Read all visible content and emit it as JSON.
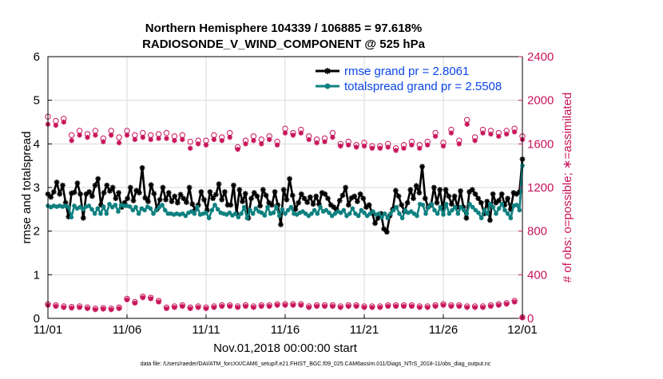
{
  "colors": {
    "rmse": "#000000",
    "spread": "#0f8080",
    "obs": "#c8145a",
    "legend_text": "#0a46e6",
    "grid": "#d9d9d9"
  },
  "chart_data": {
    "type": "line",
    "title": "Northern Hemisphere 104339 / 106885 = 97.618%",
    "subtitle": "RADIOSONDE_V_WIND_COMPONENT @ 525 hPa",
    "xlabel": "Nov.01,2018 00:00:00 start",
    "ylabel": "rmse and totalspread",
    "ylabel_right": "# of obs: o=possible; ∗=assimilated",
    "footnote": "data file: /Users/raeder/DAI/ATM_forcXX/CAM6_setup/f.e21.FHIST_BGC.f09_025.CAM6assim.011/Diags_NTrS_2018-11/obs_diag_output.nc",
    "x_ticks": [
      "11/01",
      "11/06",
      "11/11",
      "11/16",
      "11/21",
      "11/26",
      "12/01"
    ],
    "x_tick_days": [
      0,
      5,
      10,
      15,
      20,
      25,
      30
    ],
    "xlim": [
      0,
      30
    ],
    "ylim": [
      0,
      6
    ],
    "y_ticks": [
      "0",
      "1",
      "2",
      "3",
      "4",
      "5",
      "6"
    ],
    "ylim_right": [
      0,
      2400
    ],
    "y_ticks_right": [
      "0",
      "400",
      "800",
      "1200",
      "1600",
      "2000",
      "2400"
    ],
    "grid": true,
    "legend_position": "top-right",
    "series": [
      {
        "name": "rmse grand pr = 2.8061",
        "color": "#000000",
        "marker": "star",
        "values": [
          2.85,
          2.78,
          2.9,
          3.12,
          2.85,
          3.05,
          2.65,
          2.33,
          2.87,
          2.89,
          3.1,
          2.85,
          2.3,
          2.85,
          2.9,
          2.8,
          3.05,
          3.2,
          2.6,
          2.88,
          3.05,
          2.92,
          3.0,
          2.75,
          2.88,
          2.55,
          2.65,
          2.75,
          3.0,
          2.7,
          2.93,
          2.88,
          3.45,
          2.76,
          2.68,
          3.06,
          2.86,
          2.5,
          2.72,
          3.0,
          2.72,
          2.88,
          2.68,
          2.8,
          2.65,
          2.84,
          2.75,
          2.66,
          3.0,
          2.62,
          2.5,
          2.6,
          2.9,
          2.72,
          2.48,
          2.9,
          2.75,
          2.84,
          3.08,
          2.72,
          2.9,
          2.6,
          2.6,
          3.05,
          2.4,
          2.95,
          2.68,
          2.86,
          2.3,
          2.75,
          2.88,
          2.8,
          2.58,
          2.95,
          2.82,
          2.65,
          2.6,
          2.9,
          2.6,
          2.15,
          2.95,
          2.72,
          3.2,
          2.82,
          2.5,
          2.65,
          2.85,
          2.75,
          2.66,
          2.78,
          2.62,
          2.8,
          2.62,
          2.88,
          2.85,
          2.75,
          2.6,
          2.55,
          2.48,
          2.7,
          2.82,
          3.0,
          2.6,
          2.76,
          2.8,
          2.68,
          2.85,
          2.75,
          2.55,
          2.6,
          2.42,
          2.18,
          2.3,
          2.4,
          2.05,
          1.98,
          2.35,
          2.5,
          2.93,
          2.8,
          2.6,
          2.45,
          2.65,
          2.95,
          2.75,
          3.04,
          2.88,
          3.48,
          2.75,
          2.55,
          2.6,
          3.0,
          2.65,
          2.95,
          2.5,
          2.95,
          2.8,
          2.62,
          2.8,
          2.55,
          2.92,
          2.55,
          2.3,
          2.9,
          2.95,
          2.85,
          2.75,
          2.65,
          2.4,
          2.68,
          2.25,
          2.85,
          2.65,
          2.7,
          2.85,
          2.6,
          2.75,
          2.5,
          2.88,
          2.85,
          2.9,
          3.65
        ]
      },
      {
        "name": "totalspread grand pr = 2.5508",
        "color": "#0f8080",
        "marker": "circle",
        "values": [
          2.58,
          2.55,
          2.58,
          2.56,
          2.58,
          2.56,
          2.58,
          2.55,
          2.32,
          2.58,
          2.52,
          2.55,
          2.5,
          2.56,
          2.58,
          2.5,
          2.4,
          2.52,
          2.4,
          2.56,
          2.4,
          2.62,
          2.55,
          2.6,
          2.45,
          2.6,
          2.58,
          2.58,
          2.56,
          2.48,
          2.55,
          2.4,
          2.52,
          2.48,
          2.56,
          2.52,
          2.4,
          2.48,
          2.55,
          2.6,
          2.48,
          2.4,
          2.4,
          2.38,
          2.4,
          2.38,
          2.4,
          2.35,
          2.42,
          2.45,
          2.4,
          2.55,
          2.38,
          2.4,
          2.42,
          2.3,
          2.48,
          2.6,
          2.5,
          2.42,
          2.4,
          2.38,
          2.42,
          2.36,
          2.4,
          2.32,
          2.4,
          2.55,
          2.3,
          2.48,
          2.4,
          2.52,
          2.45,
          2.42,
          2.36,
          2.55,
          2.4,
          2.42,
          2.55,
          2.35,
          2.5,
          2.4,
          2.48,
          2.55,
          2.4,
          2.38,
          2.42,
          2.45,
          2.4,
          2.35,
          2.4,
          2.48,
          2.4,
          2.55,
          2.45,
          2.48,
          2.42,
          2.35,
          2.4,
          2.45,
          2.42,
          2.48,
          2.35,
          2.4,
          2.52,
          2.4,
          2.35,
          2.48,
          2.42,
          2.35,
          2.4,
          2.45,
          2.38,
          2.4,
          2.32,
          2.4,
          2.3,
          2.4,
          2.48,
          2.55,
          2.4,
          2.3,
          2.48,
          2.42,
          2.45,
          2.4,
          2.35,
          2.62,
          2.6,
          2.4,
          2.55,
          2.62,
          2.48,
          2.4,
          2.55,
          2.38,
          2.62,
          2.4,
          2.48,
          2.55,
          2.4,
          2.55,
          2.48,
          2.4,
          2.62,
          2.55,
          2.48,
          2.42,
          2.3,
          2.48,
          2.4,
          2.62,
          2.55,
          2.4,
          2.52,
          2.62,
          2.48,
          2.4,
          2.3,
          2.58,
          2.6,
          2.48,
          3.5
        ]
      }
    ],
    "obs_possible_days": [
      0,
      0.5,
      1,
      1.5,
      2,
      2.5,
      3,
      3.5,
      4,
      4.5,
      5,
      5.5,
      6,
      6.5,
      7,
      7.5,
      8,
      8.5,
      9,
      9.5,
      10,
      10.5,
      11,
      11.5,
      12,
      12.5,
      13,
      13.5,
      14,
      14.5,
      15,
      15.5,
      16,
      16.5,
      17,
      17.5,
      18,
      18.5,
      19,
      19.5,
      20,
      20.5,
      21,
      21.5,
      22,
      22.5,
      23,
      23.5,
      24,
      24.5,
      25,
      25.5,
      26,
      26.5,
      27,
      27.5,
      28,
      28.5,
      29,
      29.5,
      30
    ],
    "obs_possible_upper": [
      1850,
      1810,
      1830,
      1680,
      1720,
      1690,
      1720,
      1650,
      1720,
      1660,
      1720,
      1680,
      1700,
      1680,
      1690,
      1700,
      1670,
      1680,
      1620,
      1630,
      1630,
      1680,
      1660,
      1700,
      1570,
      1630,
      1670,
      1640,
      1670,
      1620,
      1740,
      1700,
      1730,
      1670,
      1640,
      1650,
      1700,
      1600,
      1620,
      1590,
      1610,
      1580,
      1580,
      1600,
      1560,
      1590,
      1620,
      1590,
      1620,
      1700,
      1610,
      1730,
      1630,
      1820,
      1660,
      1730,
      1720,
      1700,
      1720,
      1740,
      1670
    ],
    "obs_assim_upper": [
      1780,
      1770,
      1800,
      1630,
      1680,
      1660,
      1680,
      1620,
      1680,
      1610,
      1680,
      1640,
      1660,
      1640,
      1650,
      1650,
      1630,
      1640,
      1560,
      1600,
      1590,
      1640,
      1630,
      1660,
      1550,
      1600,
      1630,
      1600,
      1640,
      1590,
      1700,
      1680,
      1700,
      1640,
      1610,
      1620,
      1660,
      1580,
      1590,
      1570,
      1580,
      1560,
      1560,
      1570,
      1540,
      1560,
      1590,
      1560,
      1590,
      1670,
      1580,
      1700,
      1600,
      1780,
      1630,
      1700,
      1690,
      1670,
      1690,
      1710,
      1640
    ],
    "obs_possible_lower": [
      130,
      120,
      110,
      105,
      110,
      100,
      90,
      95,
      90,
      100,
      180,
      150,
      200,
      190,
      160,
      100,
      110,
      120,
      100,
      110,
      100,
      110,
      120,
      120,
      110,
      120,
      110,
      120,
      120,
      130,
      130,
      130,
      130,
      110,
      120,
      120,
      120,
      110,
      120,
      120,
      110,
      110,
      110,
      120,
      120,
      120,
      120,
      110,
      110,
      120,
      130,
      120,
      120,
      110,
      110,
      110,
      120,
      130,
      140,
      160,
      10
    ],
    "obs_assim_lower": [
      120,
      110,
      100,
      95,
      100,
      90,
      80,
      85,
      80,
      90,
      170,
      140,
      190,
      180,
      150,
      90,
      100,
      110,
      90,
      100,
      90,
      100,
      110,
      110,
      100,
      110,
      100,
      110,
      110,
      120,
      120,
      120,
      120,
      100,
      110,
      110,
      110,
      100,
      110,
      110,
      100,
      100,
      100,
      110,
      110,
      110,
      110,
      100,
      100,
      110,
      120,
      110,
      110,
      100,
      100,
      100,
      110,
      120,
      130,
      150,
      5
    ]
  }
}
